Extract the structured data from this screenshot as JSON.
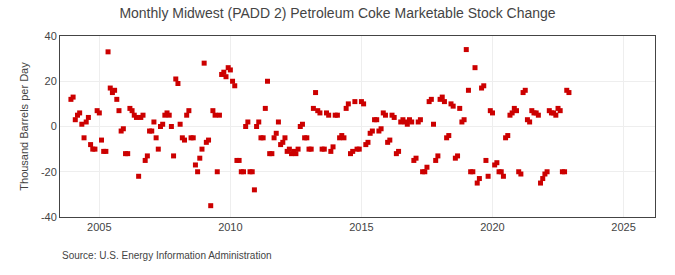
{
  "chart_data": {
    "type": "scatter",
    "title": "Monthly Midwest (PADD 2) Petroleum Coke Marketable Stock Change",
    "ylabel": "Thousand Barrels per Day",
    "annotations": [
      "Source: U.S. Energy Information Administration"
    ],
    "color": "#cc0000",
    "marker": "square",
    "grid": true,
    "xlim": [
      2003.5,
      2026.2
    ],
    "ylim": [
      -40,
      40
    ],
    "xticks": [
      2005,
      2010,
      2015,
      2020,
      2025
    ],
    "yticks": [
      -40,
      -20,
      0,
      20,
      40
    ],
    "x": [
      2003.917,
      2004.0,
      2004.083,
      2004.167,
      2004.25,
      2004.333,
      2004.417,
      2004.5,
      2004.583,
      2004.667,
      2004.75,
      2004.833,
      2004.917,
      2005.0,
      2005.083,
      2005.167,
      2005.25,
      2005.333,
      2005.417,
      2005.5,
      2005.583,
      2005.667,
      2005.75,
      2005.833,
      2005.917,
      2006.0,
      2006.083,
      2006.167,
      2006.25,
      2006.333,
      2006.417,
      2006.5,
      2006.583,
      2006.667,
      2006.75,
      2006.833,
      2006.917,
      2007.0,
      2007.083,
      2007.167,
      2007.25,
      2007.333,
      2007.417,
      2007.5,
      2007.583,
      2007.667,
      2007.75,
      2007.833,
      2007.917,
      2008.0,
      2008.083,
      2008.167,
      2008.25,
      2008.333,
      2008.417,
      2008.5,
      2008.583,
      2008.667,
      2008.75,
      2008.833,
      2008.917,
      2009.0,
      2009.083,
      2009.167,
      2009.25,
      2009.333,
      2009.417,
      2009.5,
      2009.583,
      2009.667,
      2009.75,
      2009.833,
      2009.917,
      2010.0,
      2010.083,
      2010.167,
      2010.25,
      2010.333,
      2010.417,
      2010.5,
      2010.583,
      2010.667,
      2010.75,
      2010.833,
      2010.917,
      2011.0,
      2011.083,
      2011.167,
      2011.25,
      2011.333,
      2011.417,
      2011.5,
      2011.583,
      2011.667,
      2011.75,
      2011.833,
      2011.917,
      2012.0,
      2012.083,
      2012.167,
      2012.25,
      2012.333,
      2012.417,
      2012.5,
      2012.583,
      2012.667,
      2012.75,
      2012.833,
      2012.917,
      2013.0,
      2013.083,
      2013.167,
      2013.25,
      2013.333,
      2013.417,
      2013.5,
      2013.583,
      2013.667,
      2013.75,
      2013.833,
      2013.917,
      2014.0,
      2014.083,
      2014.167,
      2014.25,
      2014.333,
      2014.417,
      2014.5,
      2014.583,
      2014.667,
      2014.75,
      2014.833,
      2014.917,
      2015.0,
      2015.083,
      2015.167,
      2015.25,
      2015.333,
      2015.417,
      2015.5,
      2015.583,
      2015.667,
      2015.75,
      2015.833,
      2015.917,
      2016.0,
      2016.083,
      2016.167,
      2016.25,
      2016.333,
      2016.417,
      2016.5,
      2016.583,
      2016.667,
      2016.75,
      2016.833,
      2016.917,
      2017.0,
      2017.083,
      2017.167,
      2017.25,
      2017.333,
      2017.417,
      2017.5,
      2017.583,
      2017.667,
      2017.75,
      2017.833,
      2017.917,
      2018.0,
      2018.083,
      2018.167,
      2018.25,
      2018.333,
      2018.417,
      2018.5,
      2018.583,
      2018.667,
      2018.75,
      2018.833,
      2018.917,
      2019.0,
      2019.083,
      2019.167,
      2019.25,
      2019.333,
      2019.417,
      2019.5,
      2019.583,
      2019.667,
      2019.75,
      2019.833,
      2019.917,
      2020.0,
      2020.083,
      2020.167,
      2020.25,
      2020.333,
      2020.417,
      2020.5,
      2020.583,
      2020.667,
      2020.75,
      2020.833,
      2020.917,
      2021.0,
      2021.083,
      2021.167,
      2021.25,
      2021.333,
      2021.417,
      2021.5,
      2021.583,
      2021.667,
      2021.75,
      2021.833,
      2021.917,
      2022.0,
      2022.083,
      2022.167,
      2022.25,
      2022.333,
      2022.417,
      2022.5,
      2022.583,
      2022.667,
      2022.75,
      2022.833,
      2022.917
    ],
    "values": [
      12,
      13,
      3,
      5,
      6,
      1,
      -5,
      2,
      4,
      -8,
      -10,
      -10,
      7,
      6,
      -6,
      -11,
      -11,
      33,
      17,
      15,
      16,
      12,
      7,
      -2,
      -1,
      -12,
      -12,
      8,
      7,
      5,
      4,
      -22,
      4,
      5,
      -15,
      -13,
      -2,
      -2,
      2,
      -5,
      -10,
      0,
      1,
      5,
      6,
      5,
      0,
      -13,
      21,
      19,
      1,
      -5,
      -6,
      5,
      7,
      -5,
      -5,
      -17,
      -20,
      -14,
      -10,
      28,
      -7,
      -6,
      -35,
      7,
      5,
      -20,
      5,
      23,
      24,
      22,
      26,
      25,
      20,
      18,
      -15,
      -15,
      -20,
      -20,
      0,
      2,
      -20,
      -20,
      -28,
      0,
      2,
      -5,
      -5,
      8,
      20,
      -12,
      -12,
      -5,
      -3,
      2,
      -8,
      -7,
      -5,
      -11,
      -10,
      -12,
      -11,
      -12,
      -10,
      0,
      1,
      -5,
      -5,
      -10,
      -10,
      8,
      15,
      7,
      6,
      -10,
      -10,
      6,
      5,
      -11,
      -9,
      5,
      5,
      -5,
      -4,
      -5,
      8,
      10,
      -12,
      -11,
      11,
      -10,
      -10,
      11,
      10,
      -8,
      -7,
      -3,
      -2,
      3,
      3,
      -2,
      -1,
      6,
      5,
      -7,
      -6,
      5,
      4,
      -12,
      -11,
      2,
      3,
      2,
      1,
      3,
      2,
      -15,
      -14,
      2,
      3,
      -20,
      -20,
      -18,
      11,
      12,
      1,
      -15,
      -13,
      12,
      13,
      11,
      -5,
      -4,
      10,
      9,
      -14,
      -13,
      8,
      2,
      3,
      34,
      16,
      -20,
      -20,
      26,
      -25,
      -23,
      17,
      18,
      -15,
      -22,
      7,
      6,
      -17,
      -16,
      -20,
      -20,
      -22,
      -5,
      -4,
      5,
      6,
      8,
      7,
      -20,
      -21,
      15,
      16,
      3,
      2,
      7,
      6,
      6,
      5,
      -25,
      -23,
      -21,
      -20,
      7,
      6,
      6,
      5,
      8,
      7,
      -20,
      -20,
      16,
      15
    ]
  }
}
